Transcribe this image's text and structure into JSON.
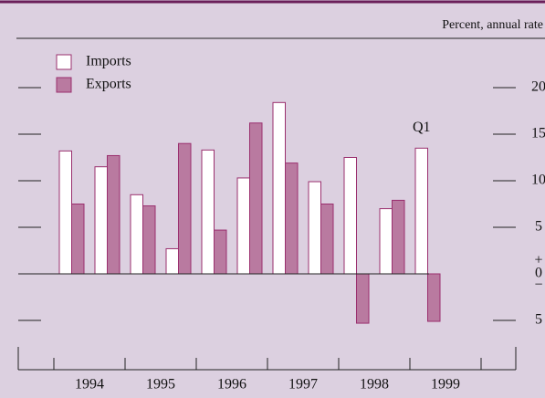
{
  "chart_data": {
    "type": "bar",
    "units_label": "Percent, annual rate",
    "categories": [
      null,
      null,
      null,
      null,
      null,
      null,
      null,
      null,
      null,
      null,
      null
    ],
    "year_labels": [
      "1994",
      "1995",
      "1996",
      "1997",
      "1998",
      "1999"
    ],
    "series": [
      {
        "name": "Imports",
        "color": "#ffffff",
        "values": [
          13.2,
          11.5,
          8.5,
          2.7,
          13.3,
          10.3,
          18.4,
          9.9,
          12.5,
          7.0,
          13.5
        ]
      },
      {
        "name": "Exports",
        "color": "#b97aa0",
        "values": [
          7.5,
          12.7,
          7.3,
          14.0,
          4.7,
          16.2,
          11.9,
          7.5,
          -5.3,
          7.9,
          -5.1
        ]
      }
    ],
    "annotation": "Q1",
    "zero_signs": [
      "+",
      "−"
    ],
    "ylim": [
      -10,
      25
    ],
    "yticks": [
      {
        "value": -5,
        "label": "5"
      },
      0,
      5,
      10,
      15,
      20
    ],
    "legend": "top-left"
  }
}
